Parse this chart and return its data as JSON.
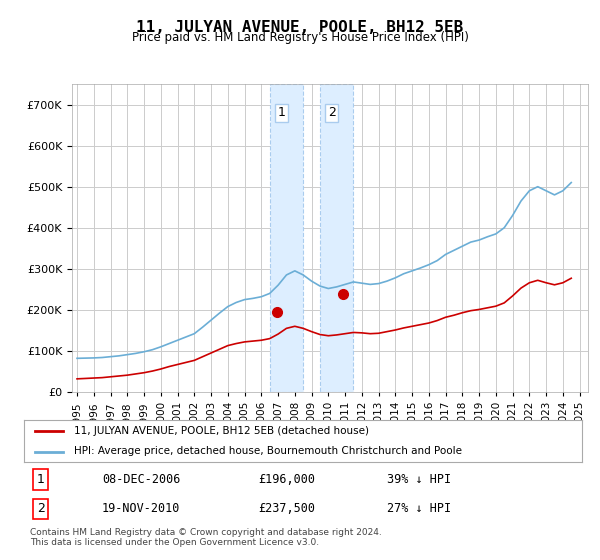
{
  "title": "11, JULYAN AVENUE, POOLE, BH12 5EB",
  "subtitle": "Price paid vs. HM Land Registry's House Price Index (HPI)",
  "legend_line1": "11, JULYAN AVENUE, POOLE, BH12 5EB (detached house)",
  "legend_line2": "HPI: Average price, detached house, Bournemouth Christchurch and Poole",
  "footnote": "Contains HM Land Registry data © Crown copyright and database right 2024.\nThis data is licensed under the Open Government Licence v3.0.",
  "sale1_label": "1",
  "sale1_date": "08-DEC-2006",
  "sale1_price": "£196,000",
  "sale1_hpi": "39% ↓ HPI",
  "sale2_label": "2",
  "sale2_date": "19-NOV-2010",
  "sale2_price": "£237,500",
  "sale2_hpi": "27% ↓ HPI",
  "hpi_color": "#6baed6",
  "price_color": "#cc0000",
  "sale1_color": "#cc0000",
  "sale2_color": "#cc0000",
  "background_color": "#ffffff",
  "grid_color": "#cccccc",
  "highlight1_color": "#ddeeff",
  "highlight1_x_start": 2006.5,
  "highlight1_x_end": 2008.5,
  "highlight2_color": "#ddeeff",
  "highlight2_x_start": 2009.5,
  "highlight2_x_end": 2011.5,
  "ylim": [
    0,
    750000
  ],
  "yticks": [
    0,
    100000,
    200000,
    300000,
    400000,
    500000,
    600000,
    700000
  ],
  "xlim_start": 1995,
  "xlim_end": 2025.5,
  "hpi_years": [
    1995,
    1995.5,
    1996,
    1996.5,
    1997,
    1997.5,
    1998,
    1998.5,
    1999,
    1999.5,
    2000,
    2000.5,
    2001,
    2001.5,
    2002,
    2002.5,
    2003,
    2003.5,
    2004,
    2004.5,
    2005,
    2005.5,
    2006,
    2006.5,
    2007,
    2007.5,
    2008,
    2008.5,
    2009,
    2009.5,
    2010,
    2010.5,
    2011,
    2011.5,
    2012,
    2012.5,
    2013,
    2013.5,
    2014,
    2014.5,
    2015,
    2015.5,
    2016,
    2016.5,
    2017,
    2017.5,
    2018,
    2018.5,
    2019,
    2019.5,
    2020,
    2020.5,
    2021,
    2021.5,
    2022,
    2022.5,
    2023,
    2023.5,
    2024,
    2024.5
  ],
  "hpi_values": [
    82000,
    82500,
    83000,
    84000,
    86000,
    88000,
    91000,
    94000,
    98000,
    103000,
    110000,
    118000,
    126000,
    134000,
    142000,
    158000,
    175000,
    192000,
    208000,
    218000,
    225000,
    228000,
    232000,
    240000,
    260000,
    285000,
    295000,
    285000,
    270000,
    258000,
    252000,
    256000,
    262000,
    268000,
    265000,
    262000,
    264000,
    270000,
    278000,
    288000,
    295000,
    302000,
    310000,
    320000,
    335000,
    345000,
    355000,
    365000,
    370000,
    378000,
    385000,
    400000,
    430000,
    465000,
    490000,
    500000,
    490000,
    480000,
    490000,
    510000
  ],
  "price_years": [
    1995,
    1995.5,
    1996,
    1996.5,
    1997,
    1997.5,
    1998,
    1998.5,
    1999,
    1999.5,
    2000,
    2000.5,
    2001,
    2001.5,
    2002,
    2002.5,
    2003,
    2003.5,
    2004,
    2004.5,
    2005,
    2005.5,
    2006,
    2006.5,
    2007,
    2007.5,
    2008,
    2008.5,
    2009,
    2009.5,
    2010,
    2010.5,
    2011,
    2011.5,
    2012,
    2012.5,
    2013,
    2013.5,
    2014,
    2014.5,
    2015,
    2015.5,
    2016,
    2016.5,
    2017,
    2017.5,
    2018,
    2018.5,
    2019,
    2019.5,
    2020,
    2020.5,
    2021,
    2021.5,
    2022,
    2022.5,
    2023,
    2023.5,
    2024,
    2024.5
  ],
  "price_values": [
    32000,
    33000,
    34000,
    35000,
    37000,
    39000,
    41000,
    44000,
    47000,
    51000,
    56000,
    62000,
    67000,
    72000,
    77000,
    86000,
    95000,
    104000,
    113000,
    118000,
    122000,
    124000,
    126000,
    130000,
    141000,
    155000,
    160000,
    155000,
    147000,
    140000,
    137000,
    139000,
    142000,
    145000,
    144000,
    142000,
    143000,
    147000,
    151000,
    156000,
    160000,
    164000,
    168000,
    174000,
    182000,
    187000,
    193000,
    198000,
    201000,
    205000,
    209000,
    217000,
    234000,
    253000,
    266000,
    272000,
    266000,
    261000,
    266000,
    277000
  ],
  "sale_points": [
    {
      "year": 2006.92,
      "price": 196000,
      "label": "1"
    },
    {
      "year": 2010.89,
      "price": 237500,
      "label": "2"
    }
  ],
  "xtick_years": [
    1995,
    1996,
    1997,
    1998,
    1999,
    2000,
    2001,
    2002,
    2003,
    2004,
    2005,
    2006,
    2007,
    2008,
    2009,
    2010,
    2011,
    2012,
    2013,
    2014,
    2015,
    2016,
    2017,
    2018,
    2019,
    2020,
    2021,
    2022,
    2023,
    2024,
    2025
  ]
}
